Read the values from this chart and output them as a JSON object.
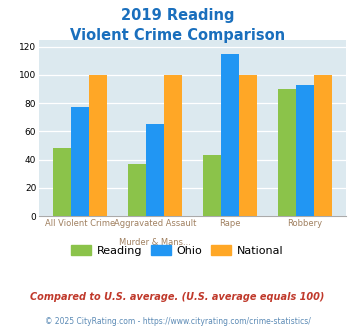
{
  "title_line1": "2019 Reading",
  "title_line2": "Violent Crime Comparison",
  "cat_labels_top": [
    "",
    "Aggravated Assault",
    "",
    ""
  ],
  "cat_labels_bot": [
    "All Violent Crime",
    "Murder & Mans...",
    "Rape",
    "Robbery"
  ],
  "reading": [
    48,
    37,
    43,
    90
  ],
  "ohio": [
    77,
    65,
    115,
    93
  ],
  "national": [
    100,
    100,
    100,
    100
  ],
  "colors": {
    "reading": "#8bc34a",
    "ohio": "#2196f3",
    "national": "#ffa726"
  },
  "ylim": [
    0,
    125
  ],
  "yticks": [
    0,
    20,
    40,
    60,
    80,
    100,
    120
  ],
  "title_color": "#1a6fbd",
  "bg_color": "#dce9ef",
  "footnote1": "Compared to U.S. average. (U.S. average equals 100)",
  "footnote2": "© 2025 CityRating.com - https://www.cityrating.com/crime-statistics/",
  "footnote1_color": "#c0392b",
  "footnote2_color": "#5b8ab5",
  "legend_labels": [
    "Reading",
    "Ohio",
    "National"
  ],
  "label_color": "#a08060"
}
